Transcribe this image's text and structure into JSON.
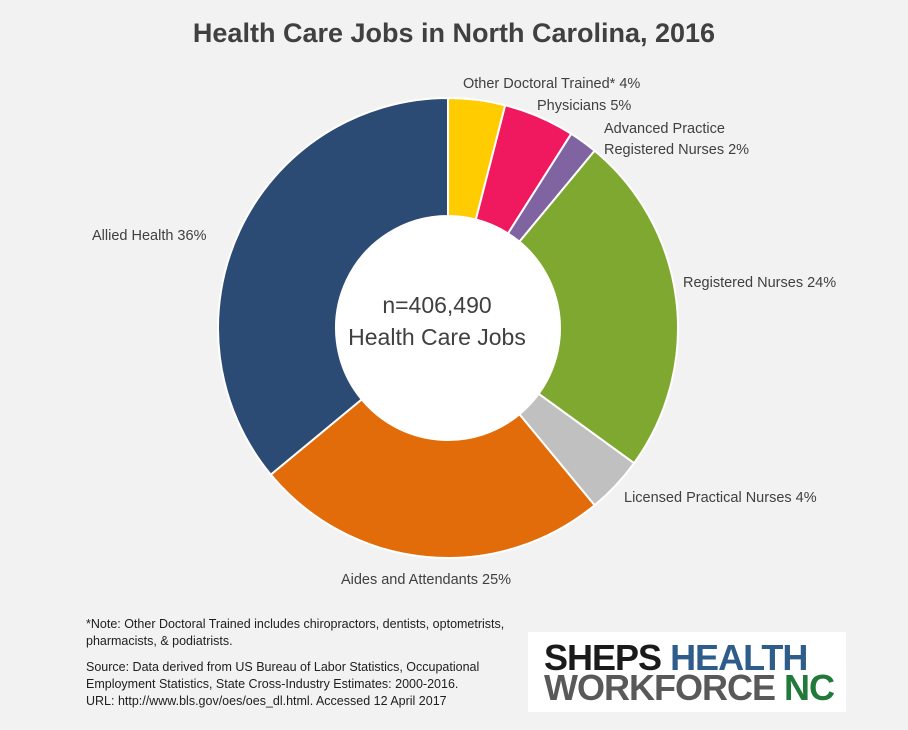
{
  "chart_data": {
    "type": "pie",
    "title": "Health Care Jobs in North Carolina, 2016",
    "center_text": [
      "n=406,490",
      "Health Care Jobs"
    ],
    "slices": [
      {
        "name": "Other Doctoral Trained*",
        "label": "Other Doctoral Trained* 4%",
        "value": 4,
        "color": "#ffcc00"
      },
      {
        "name": "Physicians",
        "label": "Physicians 5%",
        "value": 5,
        "color": "#f0185e"
      },
      {
        "name": "Advanced Practice Registered Nurses",
        "label_lines": [
          "Advanced Practice",
          "Registered Nurses 2%"
        ],
        "value": 2,
        "color": "#8064a2"
      },
      {
        "name": "Registered Nurses",
        "label": "Registered Nurses 24%",
        "value": 24,
        "color": "#7fa831"
      },
      {
        "name": "Licensed Practical Nurses",
        "label": "Licensed Practical Nurses 4%",
        "value": 4,
        "color": "#c0c0c0"
      },
      {
        "name": "Aides and Attendants",
        "label": "Aides and Attendants 25%",
        "value": 25,
        "color": "#e36c0a"
      },
      {
        "name": "Allied Health",
        "label": "Allied Health 36%",
        "value": 36,
        "color": "#2c4b74"
      }
    ],
    "legend": "none (direct labels)"
  },
  "note": "*Note: Other Doctoral Trained includes chiropractors, dentists, optometrists, pharmacists, & podiatrists.",
  "source_lines": [
    "Source: Data derived from US Bureau of Labor Statistics, Occupational",
    "Employment Statistics, State Cross-Industry Estimates: 2000-2016.",
    "URL: http://www.bls.gov/oes/oes_dl.html.  Accessed 12 April 2017"
  ],
  "logo": {
    "line1_a": "SHEPS",
    "line1_b": "HEALTH",
    "line2_a": "WORKFORCE",
    "line2_b": "NC"
  }
}
